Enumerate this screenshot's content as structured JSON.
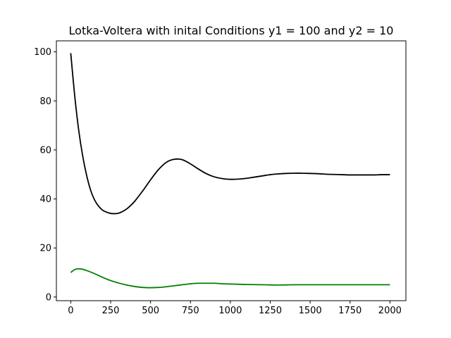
{
  "chart_data": {
    "type": "line",
    "title": "Lotka-Voltera with inital Conditions y1 = 100 and y2 = 10",
    "xlabel": "",
    "ylabel": "",
    "xlim": [
      -90,
      2100
    ],
    "ylim": [
      -1.5,
      104.5
    ],
    "xticks": [
      0,
      250,
      500,
      750,
      1000,
      1250,
      1500,
      1750,
      2000
    ],
    "yticks": [
      0,
      20,
      40,
      60,
      80,
      100
    ],
    "grid": false,
    "legend": "none",
    "series": [
      {
        "color": "#000000",
        "x": [
          0,
          25,
          50,
          75,
          100,
          125,
          150,
          175,
          200,
          225,
          250,
          275,
          300,
          325,
          350,
          375,
          400,
          450,
          500,
          550,
          600,
          650,
          700,
          750,
          800,
          850,
          900,
          950,
          1000,
          1050,
          1100,
          1150,
          1200,
          1250,
          1300,
          1350,
          1400,
          1450,
          1500,
          1550,
          1600,
          1650,
          1700,
          1750,
          1800,
          1850,
          1900,
          1950,
          2000
        ],
        "y": [
          99.5,
          82.0,
          68.0,
          57.5,
          49.5,
          43.5,
          39.5,
          37.0,
          35.4,
          34.6,
          34.1,
          34.0,
          34.2,
          34.9,
          35.9,
          37.3,
          39.0,
          43.2,
          47.8,
          52.0,
          55.0,
          56.2,
          56.0,
          54.3,
          52.2,
          50.3,
          49.0,
          48.3,
          48.0,
          48.1,
          48.4,
          48.9,
          49.4,
          49.9,
          50.2,
          50.4,
          50.5,
          50.5,
          50.4,
          50.3,
          50.1,
          50.0,
          49.9,
          49.8,
          49.8,
          49.8,
          49.8,
          49.9,
          49.9
        ]
      },
      {
        "color": "#008000",
        "x": [
          0,
          25,
          50,
          75,
          100,
          150,
          200,
          250,
          300,
          350,
          400,
          450,
          500,
          550,
          600,
          650,
          700,
          750,
          800,
          850,
          900,
          950,
          1000,
          1050,
          1100,
          1200,
          1300,
          1400,
          1500,
          1600,
          1700,
          1800,
          1900,
          2000
        ],
        "y": [
          10.0,
          11.2,
          11.5,
          11.3,
          10.8,
          9.5,
          8.0,
          6.7,
          5.7,
          4.9,
          4.3,
          3.9,
          3.8,
          3.9,
          4.2,
          4.6,
          5.0,
          5.4,
          5.6,
          5.6,
          5.6,
          5.4,
          5.3,
          5.2,
          5.1,
          5.0,
          4.9,
          5.0,
          5.0,
          5.0,
          5.0,
          5.0,
          5.0,
          5.0
        ]
      }
    ]
  }
}
